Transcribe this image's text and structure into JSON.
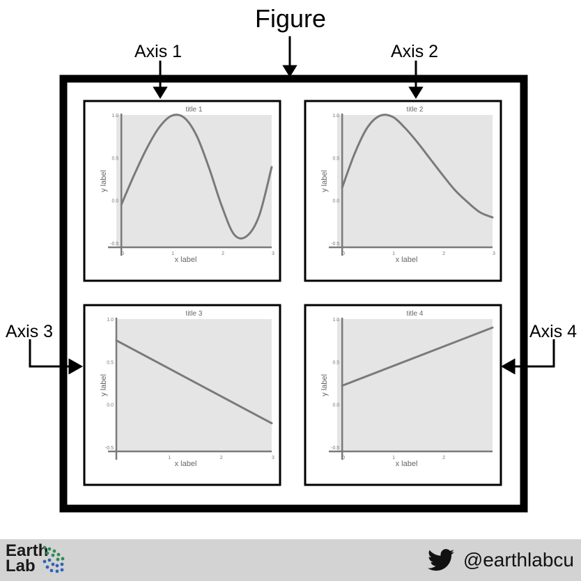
{
  "figure": {
    "title": "Figure",
    "callouts": [
      "Axis 1",
      "Axis 2",
      "Axis 3",
      "Axis 4"
    ]
  },
  "footer": {
    "logo_line1": "Earth",
    "logo_line2": "Lab",
    "twitter_handle": "@earthlabcu",
    "icons": [
      "twitter-bird-icon",
      "earthlab-dots-icon"
    ]
  },
  "colors": {
    "frame": "#000000",
    "plot_bg": "#e5e5e5",
    "line": "#7a7a7a",
    "footer_bg": "#d3d3d3"
  },
  "chart_data": [
    {
      "type": "line",
      "title": "title 1",
      "xlabel": "x label",
      "ylabel": "y label",
      "xlim": [
        -0.1,
        3
      ],
      "ylim": [
        -0.55,
        1.0
      ],
      "xticks": [
        "0",
        "1",
        "2",
        "3"
      ],
      "yticks": [
        "1.0",
        "0.5",
        "0.0",
        "-0.5"
      ],
      "x": [
        0.0,
        0.25,
        0.5,
        0.75,
        1.0,
        1.25,
        1.5,
        1.75,
        2.0,
        2.25,
        2.5,
        2.75,
        3.0
      ],
      "y": [
        -0.05,
        0.29,
        0.6,
        0.85,
        0.99,
        0.97,
        0.76,
        0.38,
        -0.06,
        -0.4,
        -0.42,
        -0.18,
        0.39
      ]
    },
    {
      "type": "line",
      "title": "title 2",
      "xlabel": "x label",
      "ylabel": "y label",
      "xlim": [
        -0.1,
        3
      ],
      "ylim": [
        -0.55,
        1.0
      ],
      "xticks": [
        "0",
        "1",
        "2",
        "3"
      ],
      "yticks": [
        "1.0",
        "0.5",
        "0.0",
        "-0.5"
      ],
      "x": [
        0.0,
        0.25,
        0.5,
        0.75,
        1.0,
        1.25,
        1.5,
        1.75,
        2.0,
        2.25,
        2.5,
        2.75,
        3.0
      ],
      "y": [
        0.15,
        0.55,
        0.85,
        0.99,
        0.98,
        0.85,
        0.68,
        0.49,
        0.3,
        0.12,
        -0.02,
        -0.14,
        -0.2
      ]
    },
    {
      "type": "line",
      "title": "title 3",
      "xlabel": "x label",
      "ylabel": "y label",
      "xlim": [
        0,
        3
      ],
      "ylim": [
        -0.55,
        1.0
      ],
      "xticks": [
        "1",
        "2",
        "3"
      ],
      "yticks": [
        "1.0",
        "0.5",
        "0.0",
        "-0.5"
      ],
      "x": [
        0,
        3
      ],
      "y": [
        0.75,
        -0.22
      ]
    },
    {
      "type": "line",
      "title": "title 4",
      "xlabel": "x label",
      "ylabel": "y label",
      "xlim": [
        -0.1,
        3
      ],
      "ylim": [
        -0.55,
        1.0
      ],
      "xticks": [
        "0",
        "1",
        "2"
      ],
      "yticks": [
        "1.0",
        "0.5",
        "0.0",
        "-0.5"
      ],
      "x": [
        0,
        3
      ],
      "y": [
        0.22,
        0.9
      ]
    }
  ]
}
